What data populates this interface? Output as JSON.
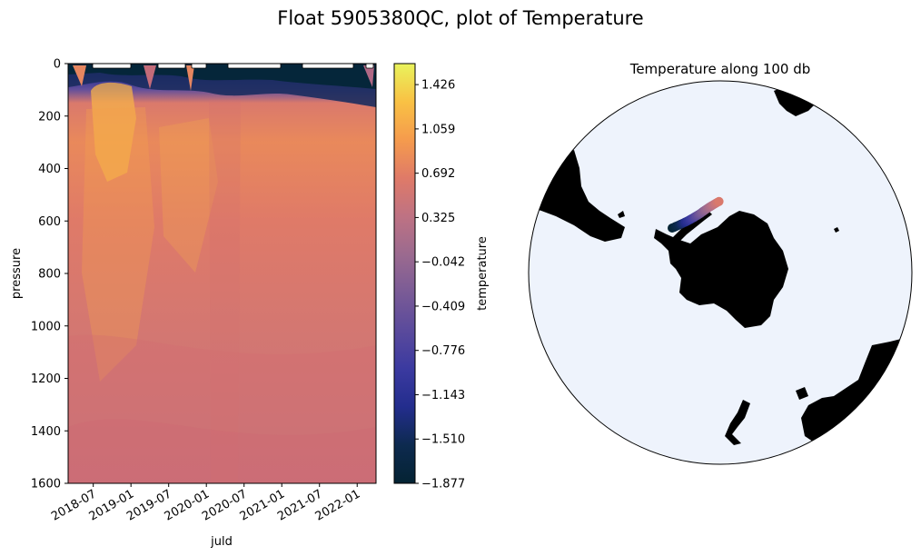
{
  "figure": {
    "title": "Float 5905380QC, plot of Temperature"
  },
  "chart_data": [
    {
      "type": "heatmap",
      "title": "",
      "xlabel": "juld",
      "ylabel": "pressure",
      "x_tick_labels": [
        "2018-07",
        "2019-01",
        "2019-07",
        "2020-01",
        "2020-07",
        "2021-01",
        "2021-07",
        "2022-01"
      ],
      "x_range": [
        "2018-03",
        "2022-04"
      ],
      "ylim": [
        1600,
        0
      ],
      "y_inverted": true,
      "y_ticks": [
        0,
        200,
        400,
        600,
        800,
        1000,
        1200,
        1400,
        1600
      ],
      "grid": false,
      "colormap": "thermal",
      "colorbar": {
        "label": "temperature",
        "range": [
          -1.877,
          1.6
        ],
        "tick_labels": [
          "1.426",
          "1.059",
          "0.692",
          "0.325",
          "−0.042",
          "−0.409",
          "−0.776",
          "−1.143",
          "−1.510",
          "−1.877"
        ],
        "tick_values": [
          1.426,
          1.059,
          0.692,
          0.325,
          -0.042,
          -0.409,
          -0.776,
          -1.143,
          -1.51,
          -1.877
        ],
        "levels": 30
      },
      "approx_profile": {
        "pressure": [
          0,
          50,
          100,
          150,
          300,
          600,
          1000,
          1400,
          1600
        ],
        "temperature": [
          -1.6,
          -1.2,
          -0.5,
          0.6,
          0.8,
          0.65,
          0.55,
          0.45,
          0.4
        ]
      },
      "missing_data_gaps_at_surface": true
    },
    {
      "type": "scatter",
      "title": "Temperature along 100 db",
      "projection": "south-polar-stereographic",
      "background": "#eef3fc",
      "land_color": "#000000",
      "float_track_location": "Weddell Sea, north of Antarctic Peninsula",
      "track_temperature_range": [
        -1.877,
        0.6
      ],
      "track_color_trend": "dark blue in west, warm orange in east"
    }
  ],
  "colors": {
    "thermal": [
      "#042333",
      "#0d2a4f",
      "#232d8d",
      "#3b3aa0",
      "#5a4a9c",
      "#7a5b96",
      "#9b6a8f",
      "#be7283",
      "#df7a68",
      "#f59b4d",
      "#f9c144",
      "#e9f35c"
    ],
    "ocean": "#eef3fc",
    "land": "#000000"
  }
}
